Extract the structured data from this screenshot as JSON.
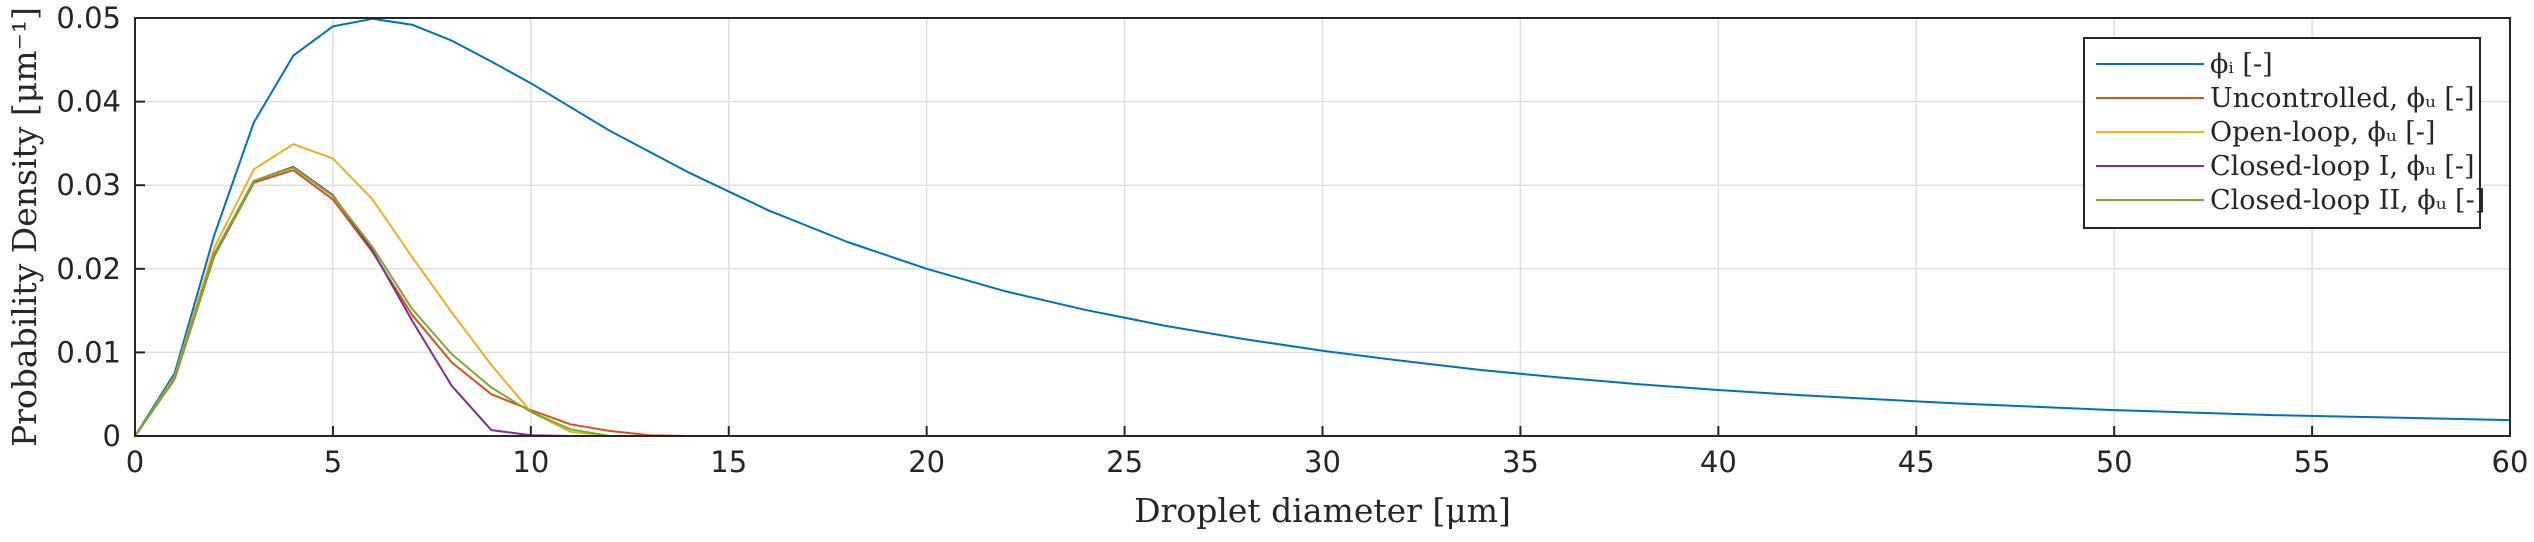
{
  "chart_data": {
    "type": "line",
    "xlabel": "Droplet diameter [μm]",
    "ylabel": "Probability Density [μm⁻¹]",
    "xlim": [
      0,
      60
    ],
    "ylim": [
      0,
      0.05
    ],
    "xticks": [
      0,
      5,
      10,
      15,
      20,
      25,
      30,
      35,
      40,
      45,
      50,
      55,
      60
    ],
    "yticks": [
      0,
      0.01,
      0.02,
      0.03,
      0.04,
      0.05
    ],
    "xtick_labels": [
      "0",
      "5",
      "10",
      "15",
      "20",
      "25",
      "30",
      "35",
      "40",
      "45",
      "50",
      "55",
      "60"
    ],
    "ytick_labels": [
      "0",
      "0.01",
      "0.02",
      "0.03",
      "0.04",
      "0.05"
    ],
    "grid": true,
    "legend_position": "top-right",
    "series": [
      {
        "name": "ϕᵢ [-]",
        "color": "#0072BD",
        "x": [
          0,
          1,
          2,
          3,
          4,
          5,
          6,
          7,
          8,
          9,
          10,
          12,
          14,
          16,
          18,
          20,
          22,
          24,
          26,
          28,
          30,
          32,
          34,
          36,
          38,
          40,
          42,
          44,
          46,
          48,
          50,
          52,
          54,
          56,
          58,
          60
        ],
        "y": [
          0,
          0.0075,
          0.024,
          0.0375,
          0.0455,
          0.049,
          0.0499,
          0.0492,
          0.0473,
          0.0448,
          0.0422,
          0.0365,
          0.0315,
          0.027,
          0.0232,
          0.02,
          0.0173,
          0.0151,
          0.0132,
          0.0116,
          0.0102,
          0.009,
          0.0079,
          0.007,
          0.0062,
          0.0055,
          0.0049,
          0.0044,
          0.0039,
          0.0035,
          0.0031,
          0.0028,
          0.0025,
          0.0023,
          0.0021,
          0.0019
        ]
      },
      {
        "name": "Uncontrolled, ϕᵤ [-]",
        "color": "#D95319",
        "x": [
          0,
          1,
          2,
          3,
          4,
          5,
          6,
          7,
          8,
          9,
          10,
          11,
          12,
          13,
          14,
          60
        ],
        "y": [
          0,
          0.0068,
          0.0215,
          0.0303,
          0.0318,
          0.0283,
          0.022,
          0.0145,
          0.0088,
          0.005,
          0.0031,
          0.0014,
          0.0006,
          0.0001,
          0,
          0
        ]
      },
      {
        "name": "Open-loop, ϕᵤ [-]",
        "color": "#EDB120",
        "x": [
          0,
          1,
          2,
          3,
          4,
          5,
          6,
          7,
          8,
          9,
          10,
          11,
          12,
          60
        ],
        "y": [
          0,
          0.0071,
          0.0225,
          0.0319,
          0.0349,
          0.0332,
          0.0283,
          0.0214,
          0.0148,
          0.0085,
          0.0029,
          0.0005,
          0,
          0
        ]
      },
      {
        "name": "Closed-loop I, ϕᵤ [-]",
        "color": "#7E2F8E",
        "x": [
          0,
          1,
          2,
          3,
          4,
          5,
          6,
          7,
          8,
          9,
          10,
          11,
          60
        ],
        "y": [
          0,
          0.0069,
          0.0218,
          0.0305,
          0.0322,
          0.0288,
          0.0222,
          0.0138,
          0.006,
          0.0007,
          0.0001,
          0,
          0
        ]
      },
      {
        "name": "Closed-loop II, ϕᵤ [-]",
        "color": "#77AC30",
        "x": [
          0,
          1,
          2,
          3,
          4,
          5,
          6,
          7,
          8,
          9,
          10,
          11,
          12,
          60
        ],
        "y": [
          0,
          0.0069,
          0.0217,
          0.0305,
          0.0321,
          0.0287,
          0.0226,
          0.0152,
          0.0098,
          0.0058,
          0.0029,
          0.0008,
          0,
          0
        ]
      }
    ]
  }
}
